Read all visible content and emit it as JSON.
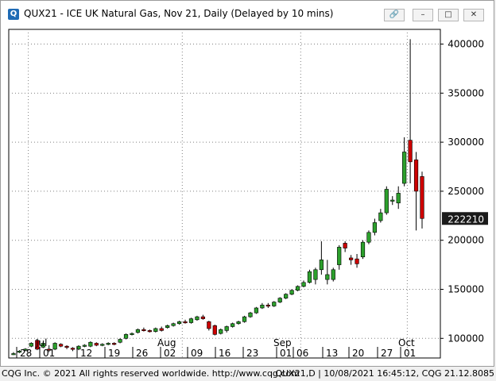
{
  "window": {
    "title": "QUX21 - ICE UK Natural Gas, Nov 21, Daily (Delayed by 10 mins)",
    "icon_name": "cqg-app-icon",
    "buttons": [
      "link-icon",
      "minimize-icon",
      "maximize-icon",
      "close-icon"
    ]
  },
  "status": {
    "left": "CQG Inc. © 2021 All rights reserved worldwide. http://www.cqg.com",
    "right": "QUX21,D | 10/08/2021 16:45:12, CQG 21.12.8085"
  },
  "chart_data": {
    "type": "candlestick",
    "title": "",
    "xlabel": "",
    "ylabel": "",
    "ylim": [
      80000,
      415000
    ],
    "grid": true,
    "y_ticks": [
      100000,
      150000,
      200000,
      250000,
      300000,
      350000,
      400000
    ],
    "x_tick_labels": [
      "28",
      "01",
      "12",
      "19",
      "26",
      "02",
      "09",
      "16",
      "23",
      "01",
      "06",
      "13",
      "20",
      "27",
      "01"
    ],
    "month_labels": [
      "Jul",
      "Aug",
      "Sep",
      "Oct"
    ],
    "last_price": 222210,
    "colors": {
      "up": "#2ca02c",
      "down": "#cc0000",
      "doji": "#2ca02c",
      "last_price_bg": "#1a1a1a"
    },
    "candles": [
      {
        "o": 84000,
        "h": 86000,
        "l": 83000,
        "c": 84500
      },
      {
        "o": 86000,
        "h": 88000,
        "l": 85000,
        "c": 87000
      },
      {
        "o": 88000,
        "h": 90000,
        "l": 87000,
        "c": 89000
      },
      {
        "o": 92000,
        "h": 96000,
        "l": 91000,
        "c": 95000
      },
      {
        "o": 98000,
        "h": 99000,
        "l": 88000,
        "c": 89000
      },
      {
        "o": 91000,
        "h": 96000,
        "l": 90000,
        "c": 95000
      },
      {
        "o": 89000,
        "h": 93000,
        "l": 86000,
        "c": 88000
      },
      {
        "o": 89000,
        "h": 96000,
        "l": 88000,
        "c": 95000
      },
      {
        "o": 94000,
        "h": 95000,
        "l": 91000,
        "c": 92000
      },
      {
        "o": 92000,
        "h": 93000,
        "l": 89000,
        "c": 91000
      },
      {
        "o": 90000,
        "h": 91000,
        "l": 87000,
        "c": 89000
      },
      {
        "o": 89000,
        "h": 93000,
        "l": 88000,
        "c": 92000
      },
      {
        "o": 92000,
        "h": 94000,
        "l": 91000,
        "c": 93000
      },
      {
        "o": 92000,
        "h": 97000,
        "l": 91000,
        "c": 96000
      },
      {
        "o": 95000,
        "h": 96000,
        "l": 92000,
        "c": 93000
      },
      {
        "o": 93000,
        "h": 95000,
        "l": 92000,
        "c": 94000
      },
      {
        "o": 94000,
        "h": 96000,
        "l": 93000,
        "c": 95000
      },
      {
        "o": 95000,
        "h": 96000,
        "l": 93000,
        "c": 94000
      },
      {
        "o": 96000,
        "h": 100000,
        "l": 95000,
        "c": 99000
      },
      {
        "o": 100000,
        "h": 105000,
        "l": 99000,
        "c": 104000
      },
      {
        "o": 104000,
        "h": 106000,
        "l": 103000,
        "c": 105000
      },
      {
        "o": 106000,
        "h": 110000,
        "l": 105000,
        "c": 109000
      },
      {
        "o": 109000,
        "h": 111000,
        "l": 107000,
        "c": 108000
      },
      {
        "o": 108000,
        "h": 109000,
        "l": 106000,
        "c": 107000
      },
      {
        "o": 107000,
        "h": 111000,
        "l": 106000,
        "c": 110000
      },
      {
        "o": 110000,
        "h": 112000,
        "l": 107000,
        "c": 108000
      },
      {
        "o": 111000,
        "h": 114000,
        "l": 110000,
        "c": 113000
      },
      {
        "o": 113000,
        "h": 116000,
        "l": 112000,
        "c": 115000
      },
      {
        "o": 115000,
        "h": 118000,
        "l": 114000,
        "c": 117000
      },
      {
        "o": 117000,
        "h": 119000,
        "l": 115000,
        "c": 116000
      },
      {
        "o": 116000,
        "h": 121000,
        "l": 115000,
        "c": 120000
      },
      {
        "o": 119000,
        "h": 123000,
        "l": 118000,
        "c": 122000
      },
      {
        "o": 122000,
        "h": 124000,
        "l": 119000,
        "c": 120000
      },
      {
        "o": 117000,
        "h": 118000,
        "l": 108000,
        "c": 110000
      },
      {
        "o": 113000,
        "h": 114000,
        "l": 103000,
        "c": 104000
      },
      {
        "o": 105000,
        "h": 110000,
        "l": 104000,
        "c": 109000
      },
      {
        "o": 108000,
        "h": 113000,
        "l": 106000,
        "c": 112000
      },
      {
        "o": 112000,
        "h": 116000,
        "l": 111000,
        "c": 115000
      },
      {
        "o": 115000,
        "h": 118000,
        "l": 114000,
        "c": 117000
      },
      {
        "o": 117000,
        "h": 123000,
        "l": 116000,
        "c": 122000
      },
      {
        "o": 122000,
        "h": 127000,
        "l": 121000,
        "c": 126000
      },
      {
        "o": 126000,
        "h": 132000,
        "l": 125000,
        "c": 131000
      },
      {
        "o": 131000,
        "h": 136000,
        "l": 130000,
        "c": 134000
      },
      {
        "o": 134000,
        "h": 136000,
        "l": 131000,
        "c": 133000
      },
      {
        "o": 133000,
        "h": 138000,
        "l": 132000,
        "c": 137000
      },
      {
        "o": 137000,
        "h": 142000,
        "l": 136000,
        "c": 141000
      },
      {
        "o": 141000,
        "h": 146000,
        "l": 140000,
        "c": 145000
      },
      {
        "o": 145000,
        "h": 150000,
        "l": 144000,
        "c": 149000
      },
      {
        "o": 149000,
        "h": 154000,
        "l": 148000,
        "c": 153000
      },
      {
        "o": 153000,
        "h": 159000,
        "l": 152000,
        "c": 157000
      },
      {
        "o": 157000,
        "h": 170000,
        "l": 156000,
        "c": 168000
      },
      {
        "o": 160000,
        "h": 172000,
        "l": 155000,
        "c": 170000
      },
      {
        "o": 170000,
        "h": 199000,
        "l": 165000,
        "c": 180000
      },
      {
        "o": 160000,
        "h": 180000,
        "l": 155000,
        "c": 165000
      },
      {
        "o": 160000,
        "h": 172000,
        "l": 158000,
        "c": 170000
      },
      {
        "o": 175000,
        "h": 195000,
        "l": 170000,
        "c": 193000
      },
      {
        "o": 197000,
        "h": 199000,
        "l": 188000,
        "c": 192000
      },
      {
        "o": 182000,
        "h": 185000,
        "l": 175000,
        "c": 180000
      },
      {
        "o": 181000,
        "h": 186000,
        "l": 172000,
        "c": 176000
      },
      {
        "o": 183000,
        "h": 200000,
        "l": 181000,
        "c": 198000
      },
      {
        "o": 198000,
        "h": 210000,
        "l": 196000,
        "c": 208000
      },
      {
        "o": 208000,
        "h": 222000,
        "l": 205000,
        "c": 218000
      },
      {
        "o": 220000,
        "h": 232000,
        "l": 218000,
        "c": 228000
      },
      {
        "o": 228000,
        "h": 255000,
        "l": 226000,
        "c": 252000
      },
      {
        "o": 240000,
        "h": 245000,
        "l": 236000,
        "c": 241000
      },
      {
        "o": 238000,
        "h": 255000,
        "l": 232000,
        "c": 248000
      },
      {
        "o": 258000,
        "h": 305000,
        "l": 255000,
        "c": 290000
      },
      {
        "o": 302000,
        "h": 405000,
        "l": 258000,
        "c": 280000
      },
      {
        "o": 282000,
        "h": 290000,
        "l": 210000,
        "c": 250000
      },
      {
        "o": 265000,
        "h": 270000,
        "l": 212000,
        "c": 222210
      }
    ]
  }
}
